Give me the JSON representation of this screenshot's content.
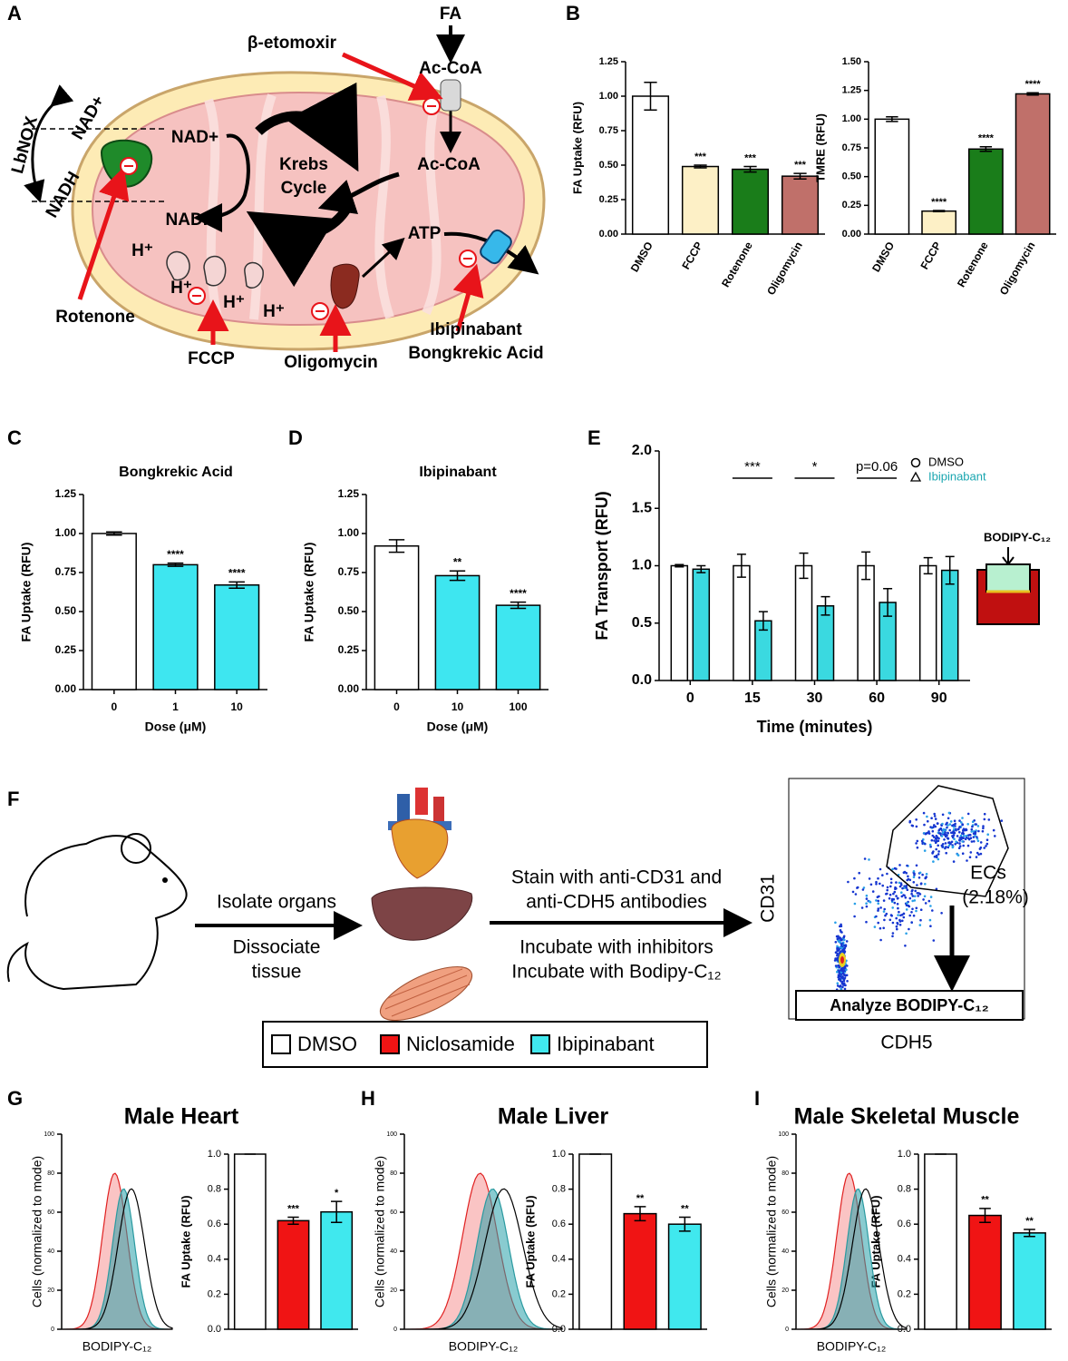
{
  "panel_labels": [
    "A",
    "B",
    "C",
    "D",
    "E",
    "F",
    "G",
    "H",
    "I"
  ],
  "diagram_a": {
    "fa": "FA",
    "etomoxir": "β-etomoxir",
    "ac_coa_top": "Ac-CoA",
    "nad_plus_left": "NAD+",
    "lbnox": "LbNOX",
    "nadh_left": "NADH",
    "nad_plus": "NAD+",
    "nadh": "NADH",
    "krebs": [
      "Krebs",
      "Cycle"
    ],
    "ac_coa": "Ac-CoA",
    "atp": "ATP",
    "protons": [
      "H⁺",
      "H⁺",
      "H⁺",
      "H⁺"
    ],
    "rotenone": "Rotenone",
    "fccp": "FCCP",
    "oligomycin": "Oligomycin",
    "ibipinabant": "Ibipinabant",
    "bongkrekic": "Bongkrekic Acid"
  },
  "diagram_f": {
    "isolate": "Isolate organs",
    "dissociate": [
      "Dissociate",
      "tissue"
    ],
    "stain": [
      "Stain with anti-CD31 and",
      "anti-CDH5 antibodies"
    ],
    "incubate": [
      "Incubate with inhibitors",
      "Incubate with Bodipy-C₁₂"
    ],
    "y_axis": "CD31",
    "x_axis": "CDH5",
    "gate": [
      "ECs",
      "(2.18%)"
    ],
    "analyze": "Analyze BODIPY-C₁₂",
    "legend": [
      {
        "name": "DMSO",
        "color": "#ffffff"
      },
      {
        "name": "Niclosamide",
        "color": "#f01414"
      },
      {
        "name": "Ibipinabant",
        "color": "#40e8ee"
      }
    ]
  },
  "chart_data": [
    {
      "type": "bar",
      "ylabel": "FA Uptake (RFU)",
      "categories": [
        "DMSO",
        "FCCP",
        "Rotenone",
        "Oligomycin"
      ],
      "values": [
        1.0,
        0.49,
        0.47,
        0.42
      ],
      "errors": [
        0.1,
        0.01,
        0.02,
        0.02
      ],
      "colors": [
        "#ffffff",
        "#fdf0c6",
        "#1a7d1a",
        "#c0706a"
      ],
      "significance": [
        null,
        "***",
        "***",
        "***"
      ],
      "ylim": [
        0,
        1.25
      ],
      "yticks": [
        {
          "value": 0,
          "label": "0.00"
        },
        {
          "value": 0.25,
          "label": "0.25"
        },
        {
          "value": 0.5,
          "label": "0.50"
        },
        {
          "value": 0.75,
          "label": "0.75"
        },
        {
          "value": 1,
          "label": "1.00"
        },
        {
          "value": 1.25,
          "label": "1.25"
        }
      ]
    },
    {
      "type": "bar",
      "ylabel": "TMRE (RFU)",
      "categories": [
        "DMSO",
        "FCCP",
        "Rotenone",
        "Oligomycin"
      ],
      "values": [
        1.0,
        0.2,
        0.74,
        1.22
      ],
      "errors": [
        0.02,
        0.005,
        0.02,
        0.01
      ],
      "colors": [
        "#ffffff",
        "#fdf0c6",
        "#1a7d1a",
        "#c0706a"
      ],
      "significance": [
        null,
        "****",
        "****",
        "****"
      ],
      "ylim": [
        0,
        1.5
      ],
      "yticks": [
        {
          "value": 0,
          "label": "0.00"
        },
        {
          "value": 0.25,
          "label": "0.25"
        },
        {
          "value": 0.5,
          "label": "0.50"
        },
        {
          "value": 0.75,
          "label": "0.75"
        },
        {
          "value": 1,
          "label": "1.00"
        },
        {
          "value": 1.25,
          "label": "1.25"
        },
        {
          "value": 1.5,
          "label": "1.50"
        }
      ]
    },
    {
      "type": "bar",
      "title": "Bongkrekic Acid",
      "ylabel": "FA Uptake (RFU)",
      "xlabel": "Dose (μM)",
      "categories": [
        "0",
        "1",
        "10"
      ],
      "values": [
        1.0,
        0.8,
        0.67
      ],
      "errors": [
        0.01,
        0.01,
        0.02
      ],
      "colors": [
        "#ffffff",
        "#3ee6f0",
        "#3ee6f0"
      ],
      "significance": [
        null,
        "****",
        "****"
      ],
      "ylim": [
        0,
        1.25
      ],
      "yticks": [
        {
          "value": 0,
          "label": "0.00"
        },
        {
          "value": 0.25,
          "label": "0.25"
        },
        {
          "value": 0.5,
          "label": "0.50"
        },
        {
          "value": 0.75,
          "label": "0.75"
        },
        {
          "value": 1,
          "label": "1.00"
        },
        {
          "value": 1.25,
          "label": "1.25"
        }
      ]
    },
    {
      "type": "bar",
      "title": "Ibipinabant",
      "ylabel": "FA Uptake (RFU)",
      "xlabel": "Dose (μM)",
      "categories": [
        "0",
        "10",
        "100"
      ],
      "values": [
        0.92,
        0.73,
        0.54
      ],
      "errors": [
        0.04,
        0.03,
        0.02
      ],
      "colors": [
        "#ffffff",
        "#3ee6f0",
        "#3ee6f0"
      ],
      "significance": [
        null,
        "**",
        "****"
      ],
      "ylim": [
        0,
        1.25
      ],
      "yticks": [
        {
          "value": 0,
          "label": "0.00"
        },
        {
          "value": 0.25,
          "label": "0.25"
        },
        {
          "value": 0.5,
          "label": "0.50"
        },
        {
          "value": 0.75,
          "label": "0.75"
        },
        {
          "value": 1,
          "label": "1.00"
        },
        {
          "value": 1.25,
          "label": "1.25"
        }
      ]
    },
    {
      "type": "bar",
      "ylabel": "FA Transport (RFU)",
      "xlabel": "Time (minutes)",
      "categories": [
        "0",
        "15",
        "30",
        "60",
        "90"
      ],
      "series": [
        {
          "name": "DMSO",
          "color": "#ffffff",
          "marker": "circle",
          "values": [
            1.0,
            1.0,
            1.0,
            1.0,
            1.0
          ],
          "errors": [
            0.01,
            0.1,
            0.11,
            0.12,
            0.07
          ]
        },
        {
          "name": "Ibipinabant",
          "color": "#3ad9e0",
          "marker": "triangle",
          "values": [
            0.97,
            0.52,
            0.65,
            0.68,
            0.96
          ],
          "errors": [
            0.03,
            0.08,
            0.08,
            0.12,
            0.12
          ]
        }
      ],
      "annotations": [
        null,
        "***",
        "*",
        "p=0.06",
        null
      ],
      "inset_label": "BODIPY-C₁₂",
      "ylim": [
        0,
        2
      ],
      "yticks": [
        {
          "value": 0,
          "label": "0.0"
        },
        {
          "value": 0.5,
          "label": "0.5"
        },
        {
          "value": 1,
          "label": "1.0"
        },
        {
          "value": 1.5,
          "label": "1.5"
        },
        {
          "value": 2,
          "label": "2.0"
        }
      ]
    },
    {
      "type": "bar",
      "title": "Male Heart",
      "ylabel": "FA Uptake (RFU)",
      "values": [
        1.0,
        0.62,
        0.67
      ],
      "errors": [
        0,
        0.02,
        0.06
      ],
      "colors": [
        "#ffffff",
        "#f01414",
        "#40e8ee"
      ],
      "significance": [
        null,
        "***",
        "*"
      ],
      "ylim": [
        0,
        1
      ],
      "yticks": [
        {
          "value": 0,
          "label": "0.0"
        },
        {
          "value": 0.2,
          "label": "0.2"
        },
        {
          "value": 0.4,
          "label": "0.4"
        },
        {
          "value": 0.6,
          "label": "0.6"
        },
        {
          "value": 0.8,
          "label": "0.8"
        },
        {
          "value": 1,
          "label": "1.0"
        }
      ],
      "histogram": {
        "ylabel": "Cells (normalized to mode)",
        "xlabel": "BODIPY-C₁₂",
        "ylim": [
          0,
          100
        ],
        "yticks": [
          0,
          20,
          40,
          60,
          80,
          100
        ]
      }
    },
    {
      "type": "bar",
      "title": "Male Liver",
      "ylabel": "FA Uptake (RFU)",
      "values": [
        1.0,
        0.66,
        0.6
      ],
      "errors": [
        0,
        0.04,
        0.04
      ],
      "colors": [
        "#ffffff",
        "#f01414",
        "#40e8ee"
      ],
      "significance": [
        null,
        "**",
        "**"
      ],
      "ylim": [
        0,
        1
      ],
      "yticks": [
        {
          "value": 0,
          "label": "0.0"
        },
        {
          "value": 0.2,
          "label": "0.2"
        },
        {
          "value": 0.4,
          "label": "0.4"
        },
        {
          "value": 0.6,
          "label": "0.6"
        },
        {
          "value": 0.8,
          "label": "0.8"
        },
        {
          "value": 1,
          "label": "1.0"
        }
      ],
      "histogram": {
        "ylabel": "Cells (normalized to mode)",
        "xlabel": "BODIPY-C₁₂",
        "ylim": [
          0,
          100
        ],
        "yticks": [
          0,
          20,
          40,
          60,
          80,
          100
        ]
      }
    },
    {
      "type": "bar",
      "title": "Male Skeletal Muscle",
      "ylabel": "FA Uptake (RFU)",
      "values": [
        1.0,
        0.65,
        0.55
      ],
      "errors": [
        0,
        0.04,
        0.02
      ],
      "colors": [
        "#ffffff",
        "#f01414",
        "#40e8ee"
      ],
      "significance": [
        null,
        "**",
        "**"
      ],
      "ylim": [
        0,
        1
      ],
      "yticks": [
        {
          "value": 0,
          "label": "0.0"
        },
        {
          "value": 0.2,
          "label": "0.2"
        },
        {
          "value": 0.4,
          "label": "0.4"
        },
        {
          "value": 0.6,
          "label": "0.6"
        },
        {
          "value": 0.8,
          "label": "0.8"
        },
        {
          "value": 1,
          "label": "1.0"
        }
      ],
      "histogram": {
        "ylabel": "Cells (normalized to mode)",
        "xlabel": "BODIPY-C₁₂",
        "ylim": [
          0,
          100
        ],
        "yticks": [
          0,
          20,
          40,
          60,
          80,
          100
        ]
      }
    }
  ]
}
